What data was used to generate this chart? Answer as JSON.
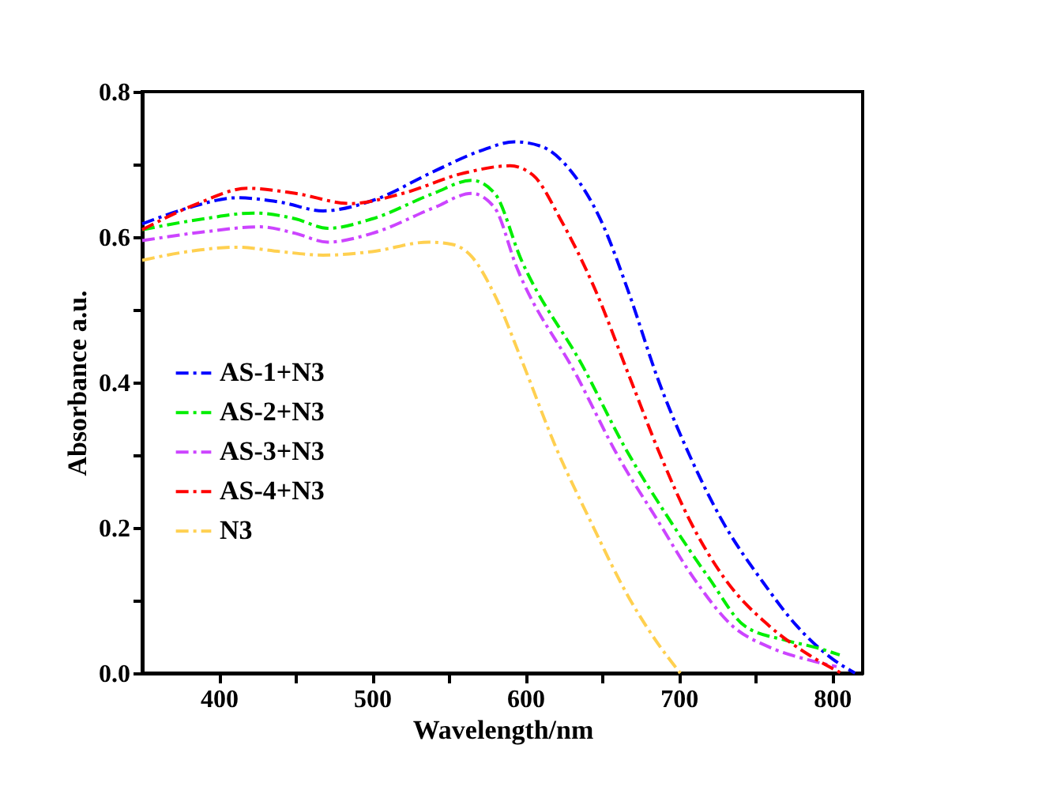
{
  "chart_data": {
    "type": "line",
    "xlabel": "Wavelength/nm",
    "ylabel": "Absorbance a.u.",
    "xlim": [
      350,
      820
    ],
    "ylim": [
      0,
      0.8
    ],
    "xticks": [
      400,
      {
        "value": 450,
        "label": null
      },
      500,
      {
        "value": 550,
        "label": null
      },
      600,
      {
        "value": 650,
        "label": null
      },
      700,
      {
        "value": 750,
        "label": null
      },
      800
    ],
    "yticks": [
      {
        "value": 0,
        "label": "0.0"
      },
      {
        "value": 0.1,
        "label": null
      },
      0.2,
      {
        "value": 0.3,
        "label": null
      },
      0.4,
      {
        "value": 0.5,
        "label": null
      },
      0.6,
      {
        "value": 0.7,
        "label": null
      },
      0.8
    ],
    "grid": false,
    "legend": "left",
    "line_style": "dashdot",
    "marker": "none",
    "series": [
      {
        "name": "AS-1+N3",
        "color": "#0000ff",
        "x": [
          350,
          380,
          412,
          440,
          468,
          500,
          540,
          570,
          593,
          610,
          630,
          649,
          668,
          686,
          707,
          728,
          755,
          777,
          800,
          815
        ],
        "values": [
          0.618,
          0.64,
          0.654,
          0.648,
          0.636,
          0.65,
          0.69,
          0.718,
          0.731,
          0.725,
          0.69,
          0.624,
          0.52,
          0.407,
          0.3,
          0.211,
          0.125,
          0.065,
          0.02,
          0.0
        ]
      },
      {
        "name": "AS-2+N3",
        "color": "#00ee00",
        "x": [
          350,
          390,
          423,
          450,
          471,
          500,
          540,
          565,
          580,
          597,
          638,
          665,
          694,
          720,
          743,
          770,
          790,
          805
        ],
        "values": [
          0.61,
          0.625,
          0.633,
          0.625,
          0.612,
          0.625,
          0.66,
          0.678,
          0.66,
          0.57,
          0.42,
          0.31,
          0.211,
          0.13,
          0.065,
          0.045,
          0.035,
          0.025
        ]
      },
      {
        "name": "AS-3+N3",
        "color": "#cc44ff",
        "x": [
          350,
          390,
          427,
          450,
          471,
          500,
          540,
          565,
          580,
          594,
          634,
          660,
          686,
          710,
          735,
          760,
          785,
          803
        ],
        "values": [
          0.595,
          0.607,
          0.614,
          0.605,
          0.593,
          0.605,
          0.64,
          0.66,
          0.64,
          0.56,
          0.407,
          0.3,
          0.211,
          0.13,
          0.065,
          0.035,
          0.018,
          0.009
        ]
      },
      {
        "name": "AS-4+N3",
        "color": "#ff0000",
        "x": [
          350,
          385,
          419,
          450,
          486,
          520,
          560,
          590,
          605,
          623,
          645,
          668,
          688,
          707,
          730,
          759,
          785,
          806
        ],
        "values": [
          0.61,
          0.645,
          0.667,
          0.66,
          0.646,
          0.66,
          0.688,
          0.698,
          0.685,
          0.624,
          0.53,
          0.407,
          0.3,
          0.211,
          0.13,
          0.065,
          0.025,
          0.0
        ]
      },
      {
        "name": "N3",
        "color": "#ffd050",
        "x": [
          350,
          380,
          412,
          440,
          468,
          500,
          537,
          552,
          565,
          580,
          598,
          620,
          642,
          668,
          685,
          701
        ],
        "values": [
          0.568,
          0.58,
          0.586,
          0.58,
          0.575,
          0.58,
          0.593,
          0.59,
          0.573,
          0.52,
          0.428,
          0.31,
          0.211,
          0.102,
          0.045,
          0.0
        ]
      }
    ]
  }
}
